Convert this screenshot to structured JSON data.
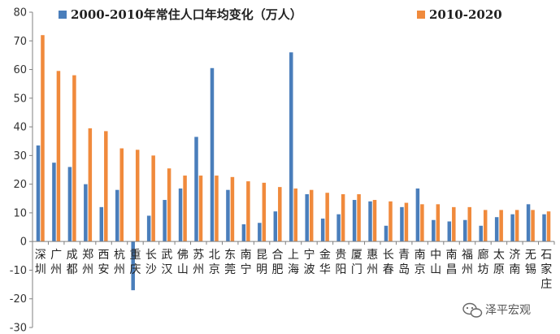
{
  "chart_data": {
    "type": "bar",
    "categories": [
      "深圳",
      "广州",
      "成都",
      "郑州",
      "西安",
      "杭州",
      "重庆",
      "长沙",
      "武汉",
      "佛山",
      "苏州",
      "北京",
      "东莞",
      "南宁",
      "昆明",
      "合肥",
      "上海",
      "宁波",
      "金华",
      "贵阳",
      "厦门",
      "惠州",
      "长春",
      "青岛",
      "南京",
      "中山",
      "南昌",
      "福州",
      "廊坊",
      "太原",
      "济南",
      "无锡",
      "石家庄"
    ],
    "series": [
      {
        "name": "2000-2010年常住人口年均变化（万人）",
        "color": "#4a7ebb",
        "values": [
          33.5,
          27.5,
          26,
          20,
          12,
          18,
          -17,
          9,
          14.5,
          18.5,
          36.5,
          60.5,
          18,
          6,
          6.5,
          10.5,
          66,
          16.5,
          8,
          9.5,
          14.5,
          14,
          5.5,
          12,
          18.5,
          7.5,
          7,
          7.5,
          5.5,
          8.5,
          9.5,
          13,
          9.5
        ]
      },
      {
        "name": "2010-2020",
        "color": "#f08a3c",
        "values": [
          72,
          59.5,
          58,
          39.5,
          38.5,
          32.5,
          32,
          30,
          25.5,
          23,
          23,
          23,
          22.5,
          21,
          20.5,
          19,
          18.5,
          18,
          17,
          16.5,
          16.5,
          14.5,
          14,
          13.5,
          13,
          13,
          12,
          12,
          11,
          11,
          11,
          11,
          10.5
        ]
      }
    ],
    "ylim": [
      -30,
      80
    ],
    "yticks": [
      -30,
      -20,
      -10,
      0,
      10,
      20,
      30,
      40,
      50,
      60,
      70,
      80
    ],
    "legend_position": "top",
    "grid": false
  },
  "watermark": {
    "text": "泽平宏观"
  }
}
